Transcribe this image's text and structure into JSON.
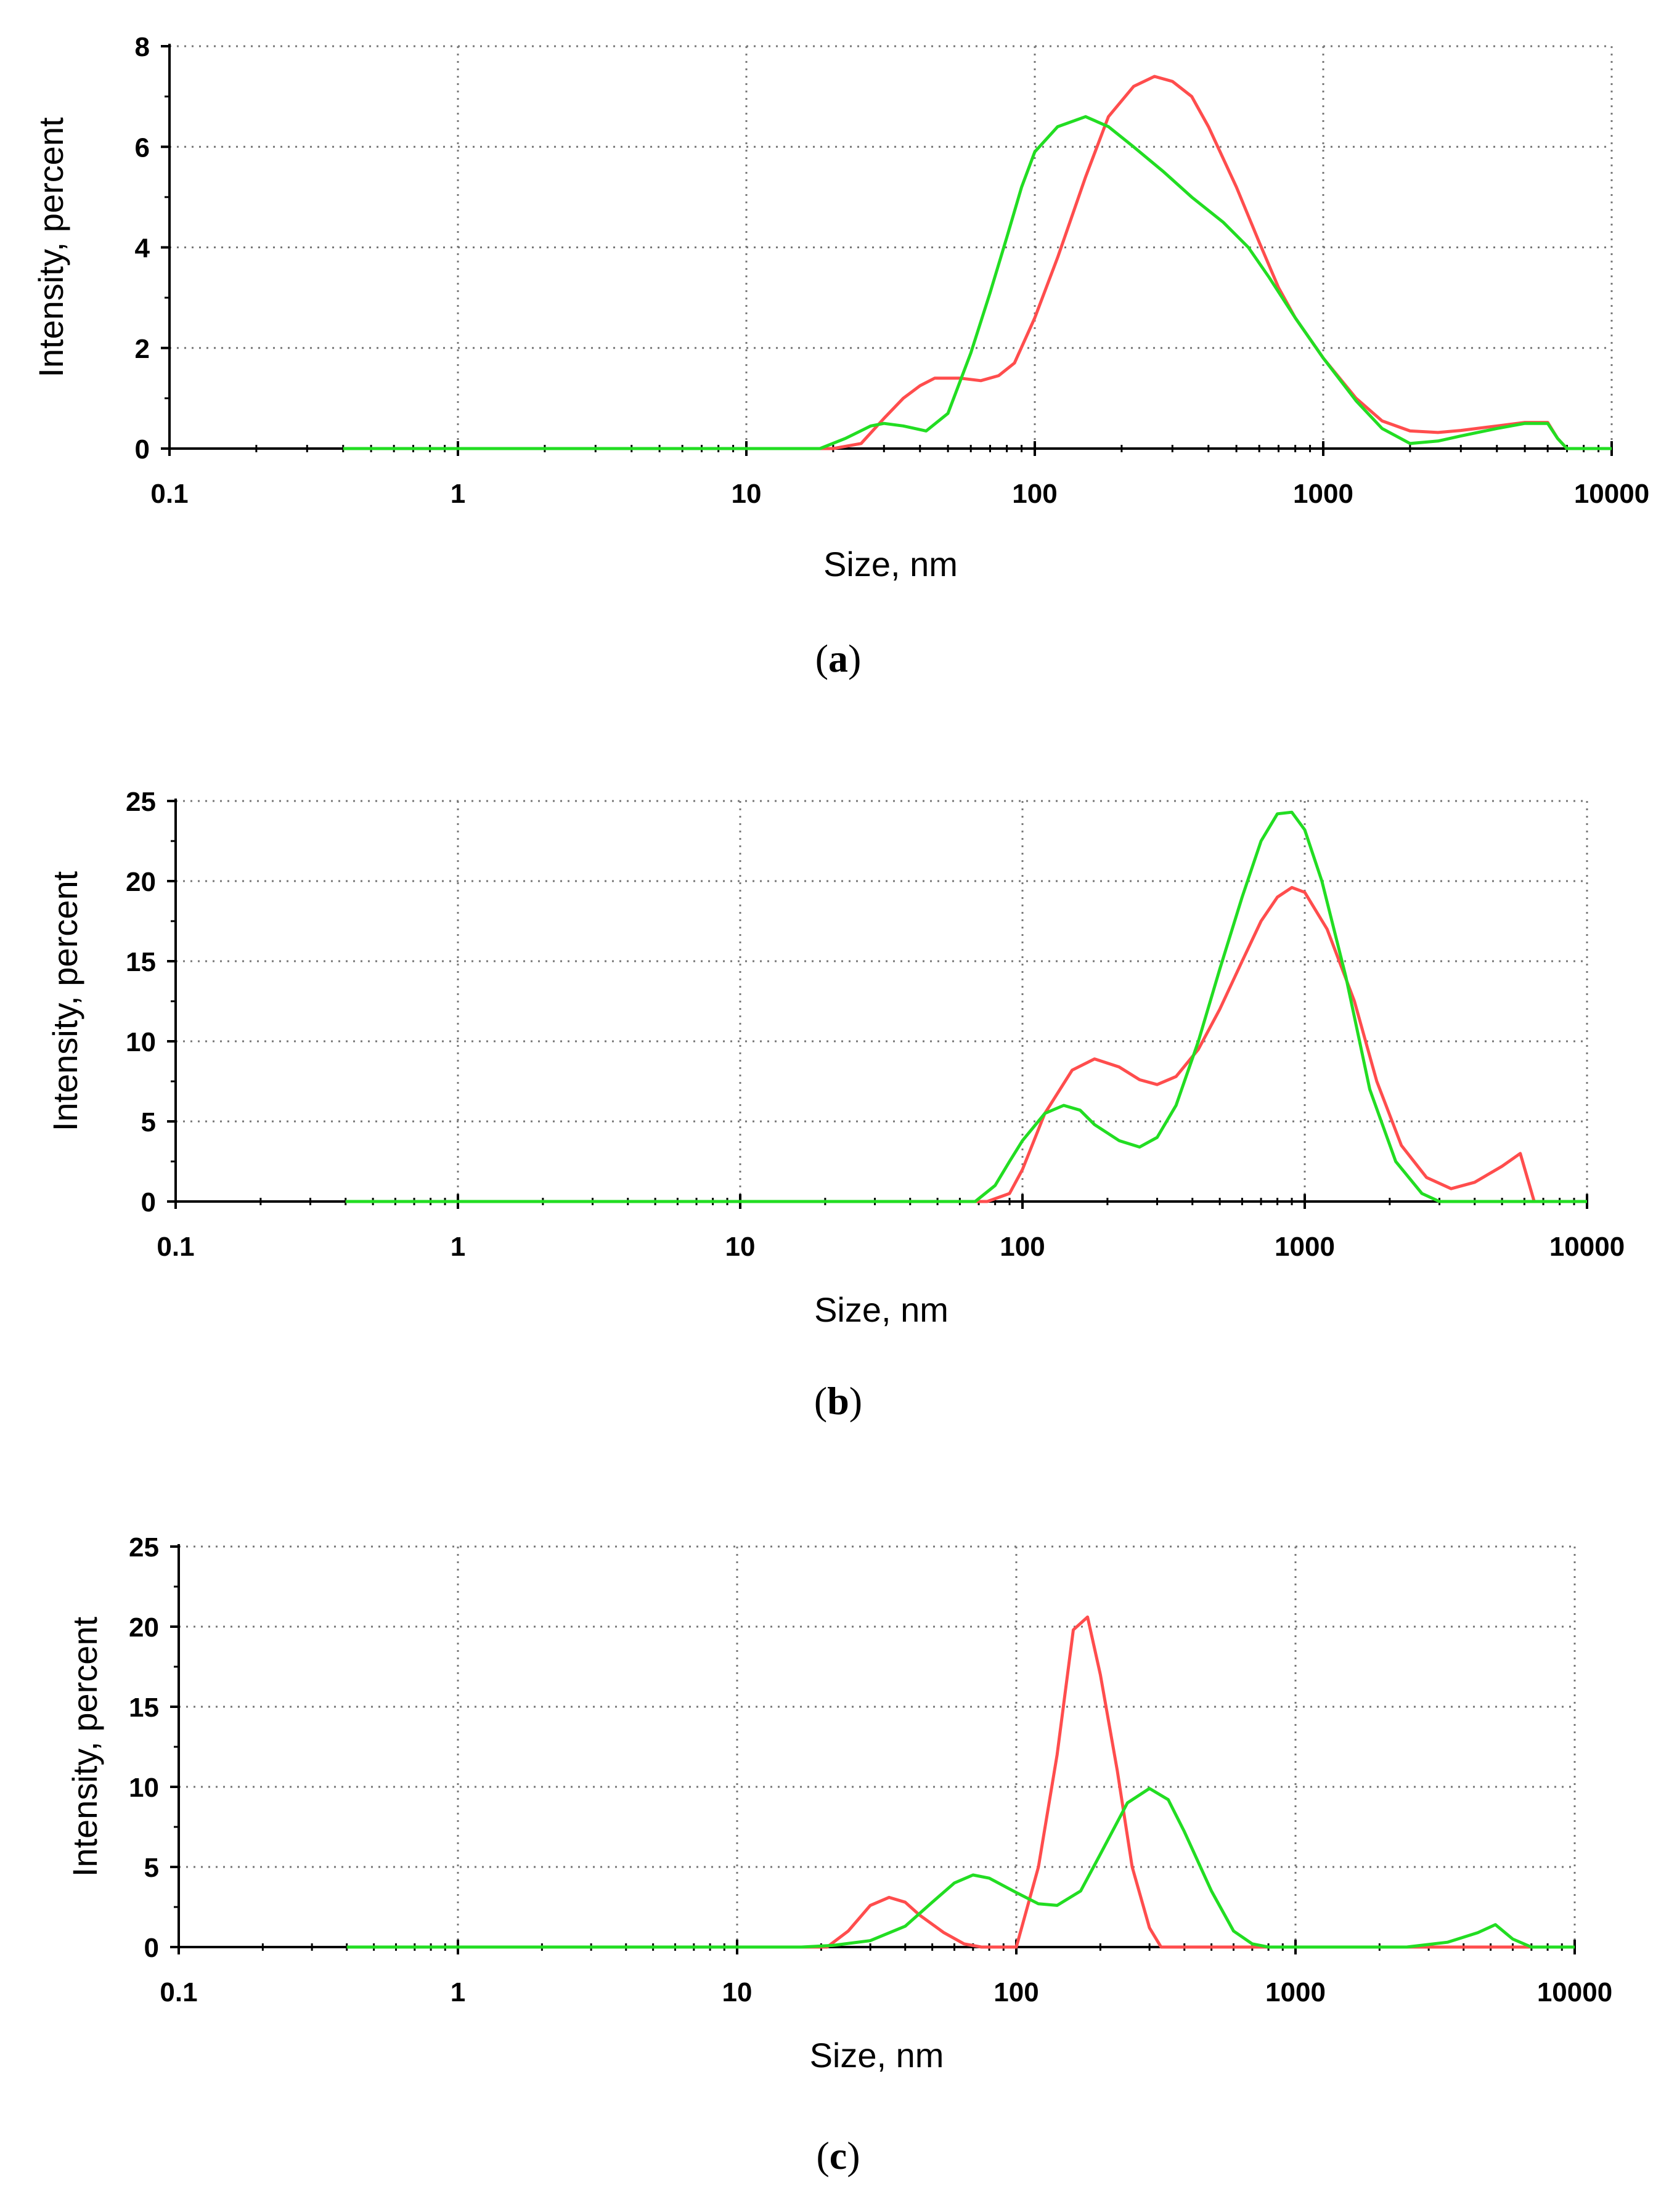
{
  "chart_data": [
    {
      "type": "line",
      "panel_label": "a",
      "xscale": "log",
      "xlim": [
        0.1,
        10000
      ],
      "ylim": [
        0,
        8
      ],
      "xticks": [
        "0.1",
        "1",
        "10",
        "100",
        "1000",
        "10000"
      ],
      "yticks": [
        "0",
        "2",
        "4",
        "6",
        "8"
      ],
      "xlabel": "Size, nm",
      "ylabel": "Intensity, percent",
      "grid": true,
      "series": [
        {
          "name": "red",
          "color": "#ff4d4d",
          "x": [
            0.4,
            20,
            25,
            30,
            35,
            40,
            45,
            55,
            65,
            75,
            85,
            100,
            120,
            150,
            180,
            220,
            260,
            300,
            350,
            400,
            500,
            600,
            700,
            800,
            1000,
            1300,
            1600,
            2000,
            2500,
            3000,
            4000,
            5000,
            6000,
            6500,
            7000,
            10000
          ],
          "y": [
            0,
            0,
            0.1,
            0.6,
            1.0,
            1.25,
            1.4,
            1.4,
            1.35,
            1.45,
            1.7,
            2.6,
            3.8,
            5.4,
            6.6,
            7.2,
            7.4,
            7.3,
            7.0,
            6.4,
            5.2,
            4.1,
            3.2,
            2.6,
            1.8,
            1.0,
            0.55,
            0.35,
            0.32,
            0.36,
            0.45,
            0.52,
            0.52,
            0.2,
            0,
            0
          ]
        },
        {
          "name": "green",
          "color": "#22dd22",
          "x": [
            0.4,
            18,
            22,
            27,
            30,
            35,
            42,
            50,
            60,
            70,
            80,
            90,
            100,
            120,
            150,
            180,
            220,
            280,
            350,
            450,
            550,
            650,
            800,
            1000,
            1300,
            1600,
            2000,
            2500,
            3000,
            4000,
            5000,
            6000,
            6500,
            7000,
            10000
          ],
          "y": [
            0,
            0,
            0.2,
            0.45,
            0.5,
            0.45,
            0.35,
            0.7,
            1.9,
            3.1,
            4.2,
            5.2,
            5.9,
            6.4,
            6.6,
            6.4,
            6.0,
            5.5,
            5.0,
            4.5,
            4.0,
            3.4,
            2.6,
            1.8,
            0.95,
            0.4,
            0.1,
            0.15,
            0.25,
            0.4,
            0.5,
            0.5,
            0.2,
            0,
            0
          ]
        }
      ]
    },
    {
      "type": "line",
      "panel_label": "b",
      "xscale": "log",
      "xlim": [
        0.1,
        10000
      ],
      "ylim": [
        0,
        25
      ],
      "xticks": [
        "0.1",
        "1",
        "10",
        "100",
        "1000",
        "10000"
      ],
      "yticks": [
        "0",
        "5",
        "10",
        "15",
        "20",
        "25"
      ],
      "xlabel": "Size, nm",
      "ylabel": "Intensity, percent",
      "grid": true,
      "series": [
        {
          "name": "red",
          "color": "#ff4d4d",
          "x": [
            0.4,
            75,
            90,
            100,
            120,
            150,
            180,
            220,
            260,
            300,
            350,
            420,
            500,
            600,
            700,
            800,
            900,
            1000,
            1200,
            1500,
            1800,
            2200,
            2700,
            3300,
            4000,
            5000,
            5800,
            6500,
            10000
          ],
          "y": [
            0,
            0,
            0.5,
            2.0,
            5.5,
            8.2,
            8.9,
            8.4,
            7.6,
            7.3,
            7.8,
            9.5,
            12.0,
            15.0,
            17.5,
            19.0,
            19.6,
            19.3,
            17.0,
            12.5,
            7.5,
            3.5,
            1.5,
            0.8,
            1.2,
            2.2,
            3.0,
            0,
            0
          ]
        },
        {
          "name": "green",
          "color": "#22dd22",
          "x": [
            0.4,
            68,
            80,
            90,
            100,
            120,
            140,
            160,
            180,
            220,
            260,
            300,
            350,
            420,
            500,
            600,
            700,
            800,
            900,
            1000,
            1150,
            1400,
            1700,
            2100,
            2600,
            3000,
            10000
          ],
          "y": [
            0,
            0,
            1.0,
            2.5,
            3.8,
            5.5,
            6.0,
            5.7,
            4.8,
            3.8,
            3.4,
            4.0,
            6.0,
            10.0,
            14.5,
            19.0,
            22.5,
            24.2,
            24.3,
            23.2,
            20.0,
            14.0,
            7.0,
            2.5,
            0.5,
            0,
            0
          ]
        }
      ]
    },
    {
      "type": "line",
      "panel_label": "c",
      "xscale": "log",
      "xlim": [
        0.1,
        10000
      ],
      "ylim": [
        0,
        25
      ],
      "xticks": [
        "0.1",
        "1",
        "10",
        "100",
        "1000",
        "10000"
      ],
      "yticks": [
        "0",
        "5",
        "10",
        "15",
        "20",
        "25"
      ],
      "xlabel": "Size, nm",
      "ylabel": "Intensity, percent",
      "grid": true,
      "series": [
        {
          "name": "red",
          "color": "#ff4d4d",
          "x": [
            0.4,
            21,
            25,
            30,
            35,
            40,
            45,
            55,
            65,
            75,
            100,
            120,
            140,
            160,
            180,
            200,
            230,
            260,
            300,
            330,
            10000
          ],
          "y": [
            0,
            0,
            1.0,
            2.6,
            3.1,
            2.8,
            2.0,
            0.9,
            0.2,
            0,
            0,
            5.0,
            12.0,
            19.8,
            20.6,
            17.0,
            11.0,
            5.0,
            1.2,
            0,
            0
          ]
        },
        {
          "name": "green",
          "color": "#22dd22",
          "x": [
            0.4,
            17,
            22,
            30,
            40,
            50,
            60,
            70,
            80,
            100,
            120,
            140,
            170,
            200,
            250,
            300,
            350,
            400,
            500,
            600,
            700,
            800,
            1000,
            2500,
            3500,
            4500,
            5200,
            6000,
            7000,
            10000
          ],
          "y": [
            0,
            0,
            0.1,
            0.4,
            1.3,
            2.8,
            4.0,
            4.5,
            4.3,
            3.4,
            2.7,
            2.6,
            3.5,
            5.8,
            9.0,
            9.9,
            9.2,
            7.2,
            3.5,
            1.0,
            0.2,
            0,
            0,
            0,
            0.3,
            0.9,
            1.4,
            0.5,
            0,
            0
          ]
        }
      ]
    }
  ]
}
